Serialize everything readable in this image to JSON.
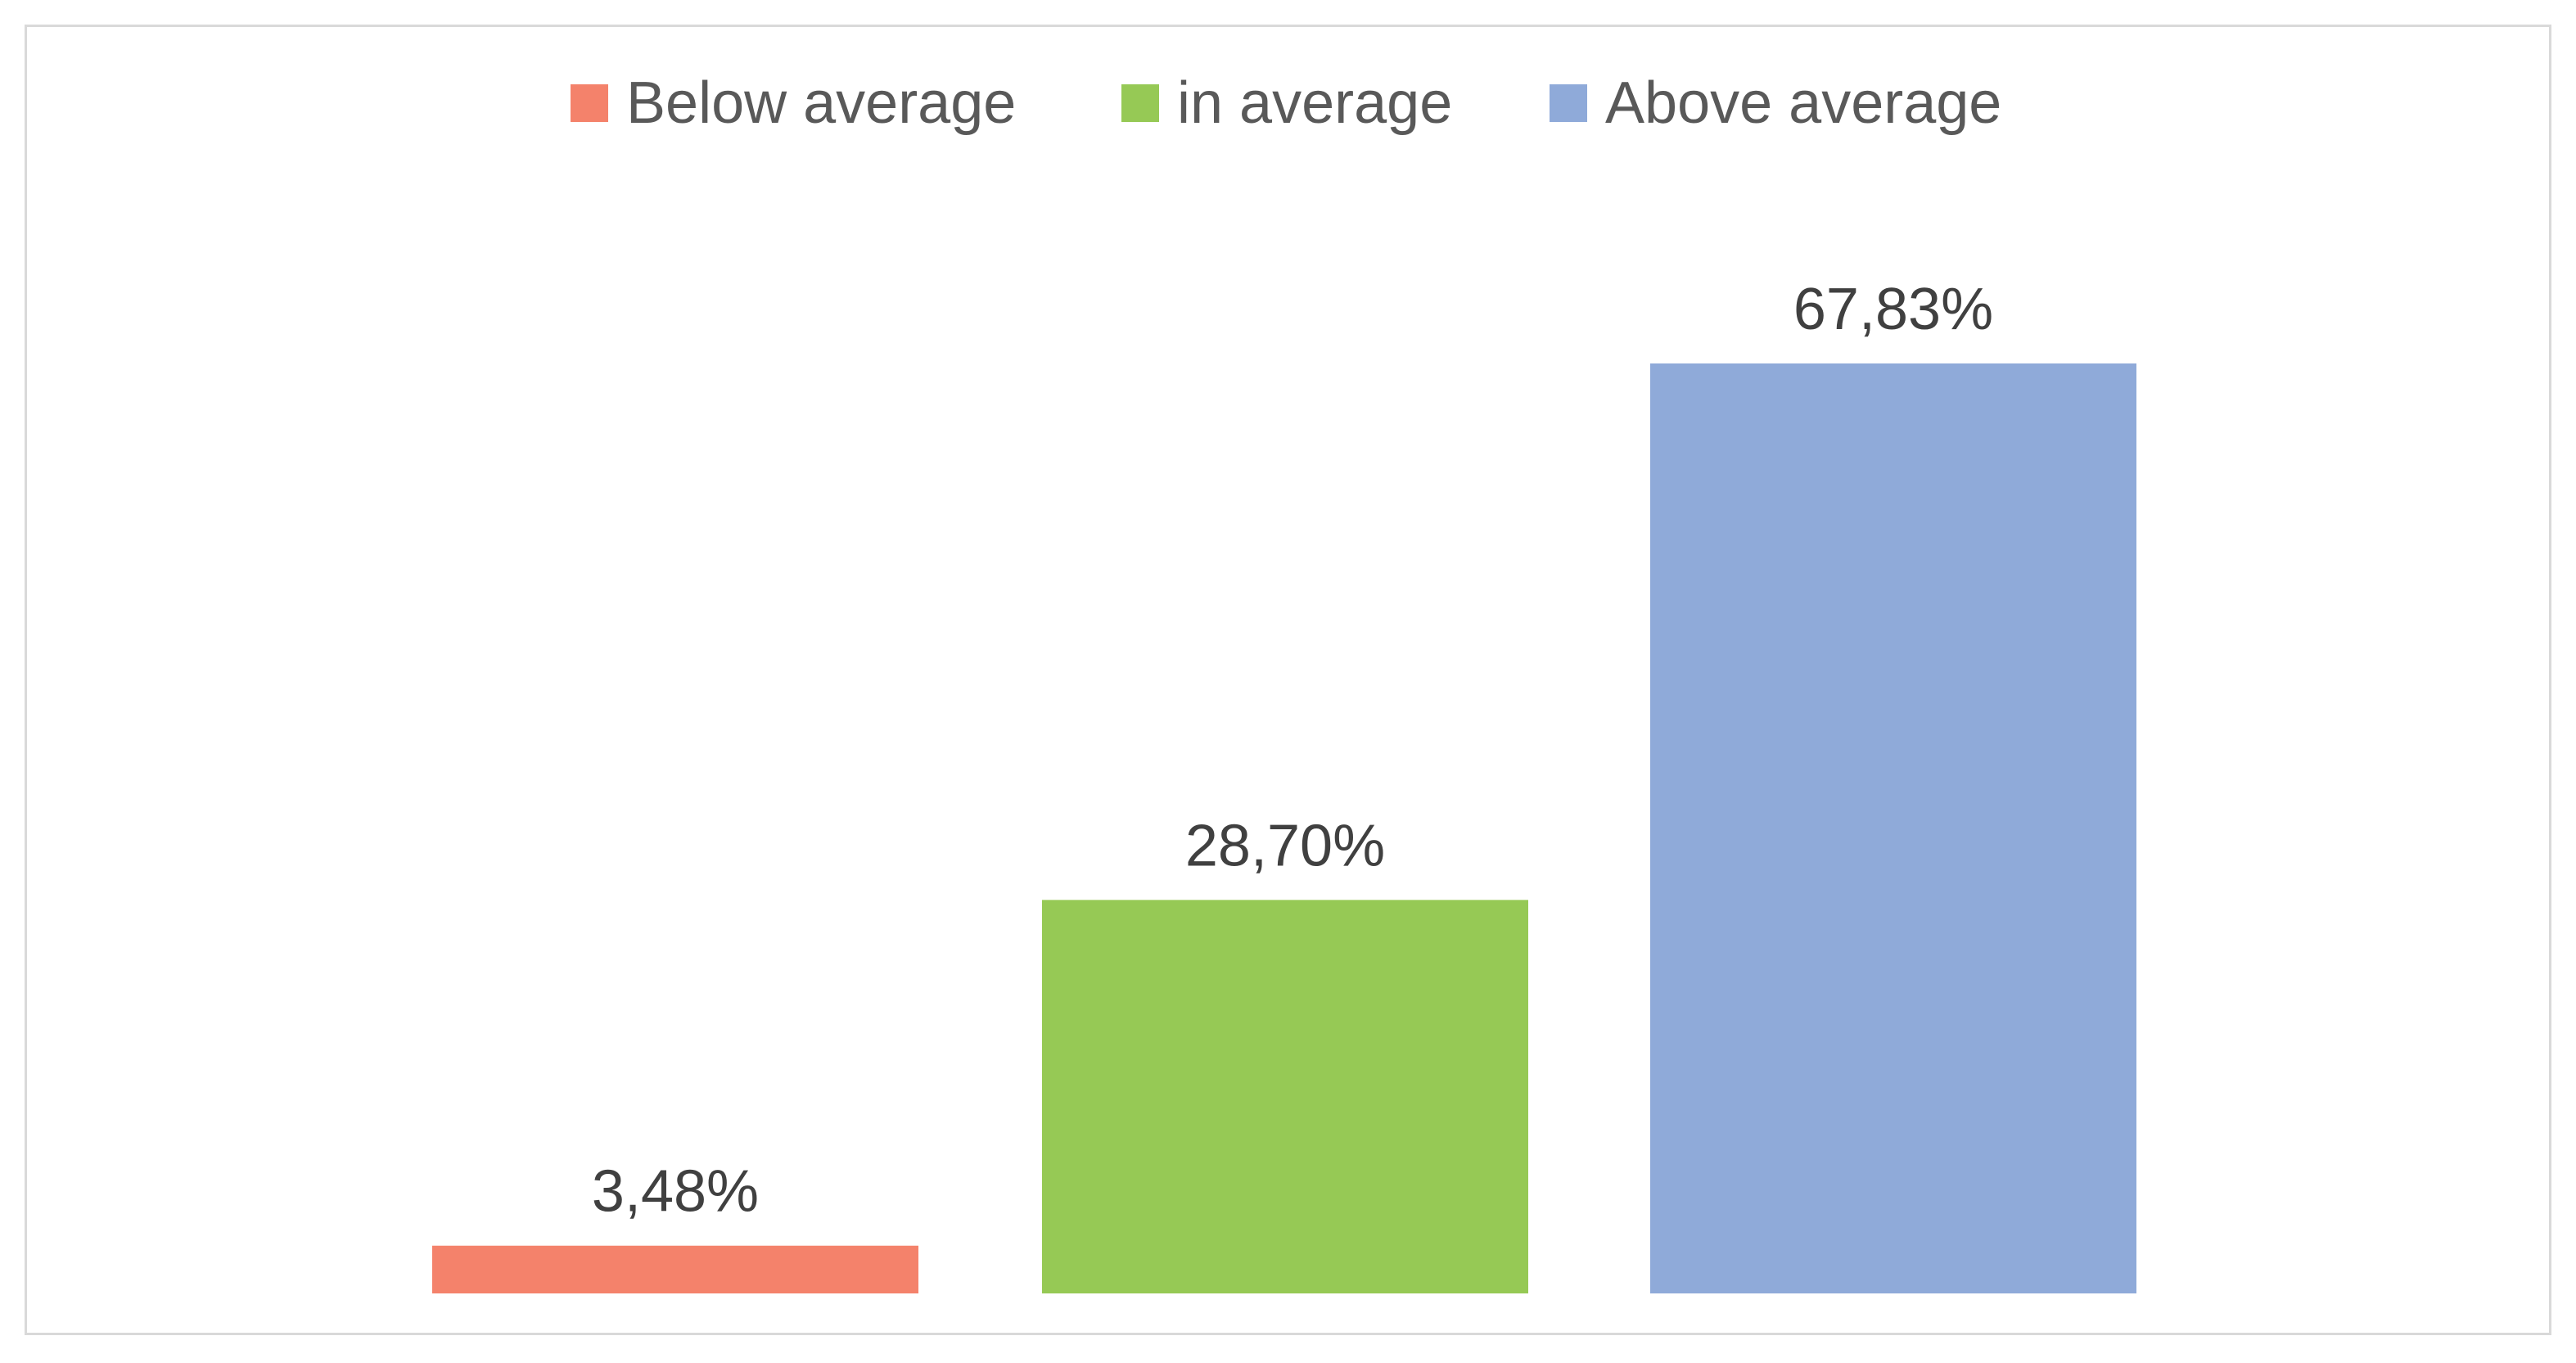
{
  "chart_data": {
    "type": "bar",
    "categories": [
      "Below average",
      "in average",
      "Above average"
    ],
    "values": [
      3.48,
      28.7,
      67.83
    ],
    "value_labels": [
      "3,48%",
      "28,70%",
      "67,83%"
    ],
    "colors": [
      "#f4826b",
      "#96c955",
      "#8faad9"
    ],
    "title": "",
    "xlabel": "",
    "ylabel": "",
    "ylim": [
      0,
      70
    ],
    "grid": false,
    "legend_position": "top-center",
    "legend": [
      {
        "label": "Below average",
        "color": "#f4826b"
      },
      {
        "label": "in average",
        "color": "#96c955"
      },
      {
        "label": "Above average",
        "color": "#8faad9"
      }
    ]
  }
}
